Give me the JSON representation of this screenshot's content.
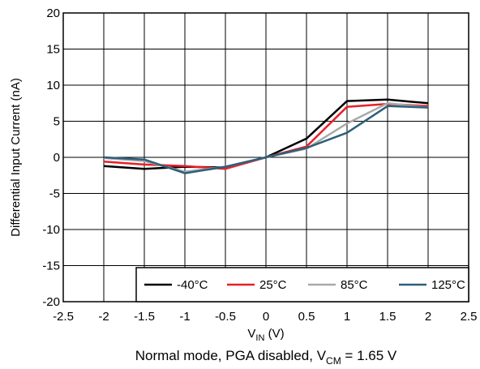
{
  "chart_data": {
    "type": "line",
    "title": "",
    "xlabel": {
      "main": "V",
      "sub": "IN",
      "unit": " (V)"
    },
    "ylabel": "Differential Input Current (nA)",
    "xlim": [
      -2.5,
      2.5
    ],
    "ylim": [
      -20,
      20
    ],
    "xticks": [
      -2.5,
      -2,
      -1.5,
      -1,
      -0.5,
      0,
      0.5,
      1,
      1.5,
      2,
      2.5
    ],
    "xtick_labels": [
      "-2.5",
      "-2",
      "-1.5",
      "-1",
      "-0.5",
      "0",
      "0.5",
      "1",
      "1.5",
      "2",
      "2.5"
    ],
    "yticks": [
      -20,
      -15,
      -10,
      -5,
      0,
      5,
      10,
      15,
      20
    ],
    "ytick_labels": [
      "-20",
      "-15",
      "-10",
      "-5",
      "0",
      "5",
      "10",
      "15",
      "20"
    ],
    "grid": true,
    "legend_position": "bottom-right",
    "caption": {
      "prefix": "Normal mode, PGA disabled, V",
      "sub": "CM",
      "suffix": " = 1.65 V"
    },
    "x": [
      -2,
      -1.5,
      -1,
      -0.5,
      0,
      0.5,
      1,
      1.5,
      2
    ],
    "series": [
      {
        "name": "-40°C",
        "color": "#000000",
        "values": [
          -1.2,
          -1.6,
          -1.3,
          -1.4,
          0.0,
          2.6,
          7.8,
          8.0,
          7.5
        ]
      },
      {
        "name": "25°C",
        "color": "#e8202a",
        "values": [
          -0.6,
          -1.0,
          -1.2,
          -1.6,
          0.0,
          1.5,
          7.0,
          7.4,
          7.1
        ]
      },
      {
        "name": "85°C",
        "color": "#a9a9a9",
        "values": [
          -0.1,
          -0.5,
          -2.0,
          -1.3,
          0.0,
          1.2,
          4.7,
          7.5,
          6.9
        ]
      },
      {
        "name": "125°C",
        "color": "#2e5f7a",
        "values": [
          0.0,
          -0.3,
          -2.2,
          -1.3,
          0.0,
          1.3,
          3.4,
          7.1,
          6.9
        ]
      }
    ]
  }
}
